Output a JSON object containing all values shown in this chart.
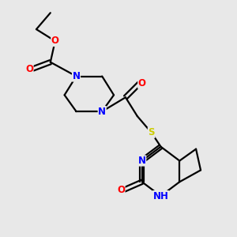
{
  "bg_color": "#e8e8e8",
  "bond_color": "#000000",
  "atom_colors": {
    "N": "#0000ff",
    "O": "#ff0000",
    "S": "#cccc00",
    "C": "#000000",
    "H": "#008080"
  },
  "font_size": 8.5,
  "line_width": 1.6
}
